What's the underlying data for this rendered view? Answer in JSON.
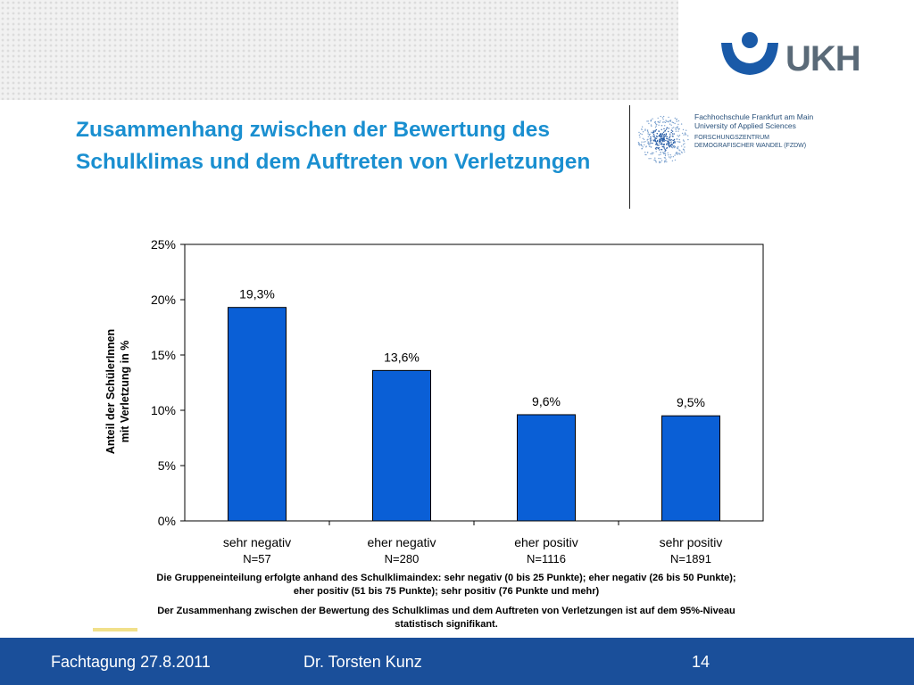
{
  "header": {
    "logo_text": "UKH",
    "title": "Zusammenhang zwischen der Bewertung des Schulklimas und dem Auftreten von Verletzungen",
    "partner_line1": "Fachhochschule Frankfurt am Main",
    "partner_line2": "University of Applied Sciences",
    "partner_line3": "FORSCHUNGSZENTRUM",
    "partner_line4": "DEMOGRAFISCHER WANDEL (FZDW)"
  },
  "chart_data": {
    "type": "bar",
    "categories": [
      "sehr negativ",
      "eher negativ",
      "eher positiv",
      "sehr positiv"
    ],
    "n_labels": [
      "N=57",
      "N=280",
      "N=1116",
      "N=1891"
    ],
    "values": [
      19.3,
      13.6,
      9.6,
      9.5
    ],
    "value_labels": [
      "19,3%",
      "13,6%",
      "9,6%",
      "9,5%"
    ],
    "title": "",
    "xlabel": "",
    "ylabel_line1": "Anteil der SchülerInnen",
    "ylabel_line2": "mit Verletzung in %",
    "ylim": [
      0,
      25
    ],
    "yticks": [
      0,
      5,
      10,
      15,
      20,
      25
    ],
    "ytick_labels": [
      "0%",
      "5%",
      "10%",
      "15%",
      "20%",
      "25%"
    ],
    "grid": false,
    "bar_color": "#0a5fd6"
  },
  "notes": {
    "grouping_line1": "Die Gruppeneinteilung erfolgte anhand des Schulklimaindex: sehr negativ (0 bis 25 Punkte); eher negativ (26 bis 50 Punkte);",
    "grouping_line2": "eher positiv (51 bis 75 Punkte); sehr positiv (76 Punkte und mehr)",
    "significance_line1": "Der Zusammenhang zwischen der Bewertung des Schulklimas und dem Auftreten von Verletzungen ist auf dem 95%-Niveau",
    "significance_line2": "statistisch signifikant."
  },
  "footer": {
    "event": "Fachtagung 27.8.2011",
    "author": "Dr. Torsten Kunz",
    "page": "14"
  }
}
